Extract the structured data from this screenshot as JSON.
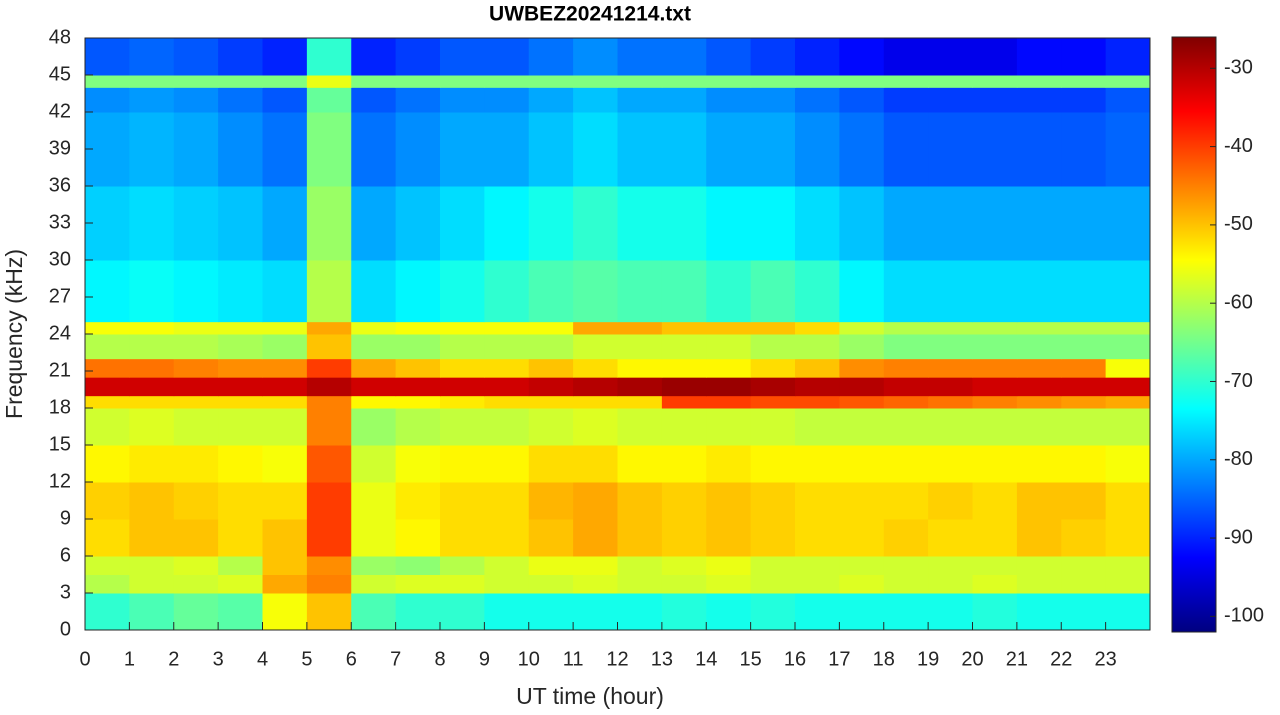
{
  "chart_data": {
    "type": "heatmap",
    "title": "UWBEZ20241214.txt",
    "xlabel": "UT time (hour)",
    "ylabel": "Frequency (kHz)",
    "colormap": "jet",
    "xbins": [
      0,
      1,
      2,
      3,
      4,
      5,
      6,
      7,
      8,
      9,
      10,
      11,
      12,
      13,
      14,
      15,
      16,
      17,
      18,
      19,
      20,
      21,
      22,
      23,
      24
    ],
    "ybins": [
      0,
      3,
      4.5,
      6,
      9,
      12,
      15,
      18,
      19,
      20.5,
      22,
      24,
      25,
      30,
      36,
      42,
      44,
      45,
      48
    ],
    "z": [
      [
        -70,
        -68,
        -66,
        -67,
        -55,
        -50,
        -68,
        -70,
        -70,
        -72,
        -72,
        -72,
        -72,
        -71,
        -72,
        -71,
        -72,
        -72,
        -72,
        -72,
        -71,
        -72,
        -72,
        -72
      ],
      [
        -60,
        -58,
        -58,
        -57,
        -48,
        -45,
        -58,
        -57,
        -57,
        -58,
        -58,
        -57,
        -58,
        -58,
        -57,
        -58,
        -58,
        -57,
        -58,
        -58,
        -57,
        -58,
        -58,
        -58
      ],
      [
        -58,
        -58,
        -57,
        -60,
        -50,
        -46,
        -62,
        -63,
        -60,
        -58,
        -56,
        -56,
        -58,
        -57,
        -56,
        -58,
        -58,
        -58,
        -58,
        -58,
        -58,
        -58,
        -58,
        -58
      ],
      [
        -52,
        -50,
        -50,
        -52,
        -50,
        -40,
        -56,
        -54,
        -52,
        -52,
        -50,
        -48,
        -50,
        -51,
        -50,
        -51,
        -52,
        -52,
        -51,
        -52,
        -52,
        -50,
        -51,
        -52
      ],
      [
        -51,
        -50,
        -51,
        -52,
        -52,
        -40,
        -56,
        -53,
        -52,
        -52,
        -49,
        -48,
        -50,
        -51,
        -50,
        -51,
        -52,
        -52,
        -52,
        -51,
        -52,
        -50,
        -50,
        -52
      ],
      [
        -54,
        -53,
        -53,
        -54,
        -55,
        -42,
        -58,
        -55,
        -54,
        -54,
        -52,
        -52,
        -54,
        -54,
        -53,
        -54,
        -54,
        -54,
        -54,
        -54,
        -54,
        -54,
        -54,
        -55
      ],
      [
        -58,
        -57,
        -58,
        -58,
        -58,
        -45,
        -62,
        -60,
        -59,
        -59,
        -58,
        -57,
        -58,
        -58,
        -58,
        -58,
        -59,
        -59,
        -59,
        -59,
        -59,
        -59,
        -59,
        -59
      ],
      [
        -52,
        -52,
        -52,
        -52,
        -52,
        -45,
        -54,
        -54,
        -53,
        -52,
        -52,
        -52,
        -52,
        -40,
        -40,
        -41,
        -41,
        -42,
        -43,
        -44,
        -45,
        -46,
        -47,
        -48
      ],
      [
        -32,
        -32,
        -32,
        -32,
        -32,
        -30,
        -32,
        -32,
        -32,
        -32,
        -31,
        -30,
        -29,
        -28,
        -28,
        -29,
        -30,
        -30,
        -31,
        -31,
        -32,
        -32,
        -32,
        -32
      ],
      [
        -44,
        -44,
        -45,
        -46,
        -46,
        -40,
        -48,
        -50,
        -52,
        -52,
        -50,
        -52,
        -54,
        -54,
        -54,
        -52,
        -50,
        -46,
        -45,
        -45,
        -45,
        -45,
        -45,
        -55
      ],
      [
        -60,
        -60,
        -60,
        -61,
        -62,
        -50,
        -62,
        -62,
        -60,
        -60,
        -60,
        -58,
        -58,
        -58,
        -58,
        -60,
        -60,
        -62,
        -64,
        -64,
        -64,
        -64,
        -64,
        -64
      ],
      [
        -55,
        -55,
        -56,
        -56,
        -56,
        -48,
        -56,
        -55,
        -55,
        -55,
        -55,
        -48,
        -48,
        -50,
        -50,
        -50,
        -52,
        -58,
        -60,
        -60,
        -60,
        -60,
        -60,
        -60
      ],
      [
        -74,
        -73,
        -74,
        -75,
        -76,
        -60,
        -76,
        -74,
        -72,
        -70,
        -68,
        -67,
        -68,
        -68,
        -70,
        -68,
        -70,
        -74,
        -76,
        -76,
        -76,
        -76,
        -76,
        -76
      ],
      [
        -77,
        -76,
        -77,
        -78,
        -80,
        -62,
        -80,
        -78,
        -76,
        -74,
        -72,
        -70,
        -72,
        -72,
        -74,
        -74,
        -76,
        -78,
        -80,
        -80,
        -80,
        -80,
        -80,
        -80
      ],
      [
        -80,
        -79,
        -80,
        -82,
        -84,
        -64,
        -84,
        -82,
        -80,
        -80,
        -78,
        -76,
        -78,
        -78,
        -80,
        -80,
        -82,
        -84,
        -86,
        -86,
        -86,
        -86,
        -86,
        -85
      ],
      [
        -82,
        -81,
        -82,
        -84,
        -86,
        -66,
        -86,
        -84,
        -82,
        -82,
        -80,
        -78,
        -80,
        -80,
        -82,
        -82,
        -84,
        -86,
        -88,
        -88,
        -88,
        -88,
        -88,
        -86
      ],
      [
        -64,
        -64,
        -64,
        -64,
        -64,
        -56,
        -64,
        -64,
        -64,
        -64,
        -64,
        -64,
        -64,
        -64,
        -64,
        -64,
        -64,
        -64,
        -64,
        -64,
        -64,
        -64,
        -64,
        -64
      ],
      [
        -86,
        -85,
        -86,
        -88,
        -90,
        -70,
        -90,
        -88,
        -86,
        -86,
        -84,
        -82,
        -84,
        -84,
        -86,
        -88,
        -90,
        -92,
        -94,
        -94,
        -94,
        -92,
        -92,
        -90
      ]
    ],
    "xlim": [
      0,
      24
    ],
    "ylim": [
      0,
      48
    ],
    "xticks": [
      0,
      1,
      2,
      3,
      4,
      5,
      6,
      7,
      8,
      9,
      10,
      11,
      12,
      13,
      14,
      15,
      16,
      17,
      18,
      19,
      20,
      21,
      22,
      23
    ],
    "yticks": [
      0,
      3,
      6,
      9,
      12,
      15,
      18,
      21,
      24,
      27,
      30,
      33,
      36,
      39,
      42,
      45,
      48
    ],
    "clim": [
      -102,
      -26
    ],
    "cticks": [
      -100,
      -90,
      -80,
      -70,
      -60,
      -50,
      -40,
      -30
    ]
  }
}
